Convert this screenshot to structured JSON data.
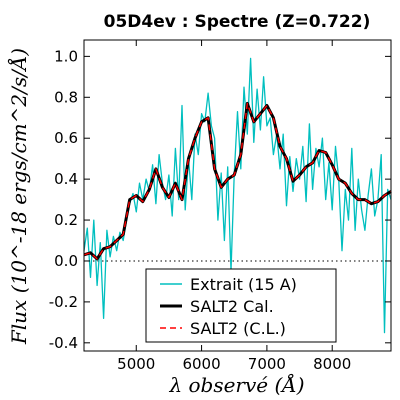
{
  "chart_data": {
    "type": "line",
    "title": "05D4ev : Spectre (Z=0.722)",
    "xlabel": "λ observé (Å)",
    "ylabel": "Flux (10^-18 ergs/cm^2/s/Å)",
    "xlim": [
      4200,
      8900
    ],
    "ylim": [
      -0.44,
      1.08
    ],
    "x_ticks": [
      5000,
      6000,
      7000,
      8000
    ],
    "x_tick_labels": [
      "5000",
      "6000",
      "7000",
      "8000"
    ],
    "y_ticks": [
      -0.4,
      -0.2,
      0.0,
      0.2,
      0.4,
      0.6,
      0.8,
      1.0
    ],
    "y_tick_labels": [
      "-0.4",
      "-0.2",
      "0.0",
      "0.2",
      "0.4",
      "0.6",
      "0.8",
      "1.0"
    ],
    "zero_line": true,
    "legend_position": "bottom-center",
    "series": [
      {
        "name": "Extrait (15 A)",
        "color": "#00bfbf",
        "style": "solid",
        "x": [
          4200,
          4250,
          4300,
          4350,
          4400,
          4450,
          4500,
          4550,
          4600,
          4650,
          4700,
          4750,
          4800,
          4850,
          4900,
          4950,
          5000,
          5050,
          5100,
          5150,
          5200,
          5250,
          5300,
          5350,
          5400,
          5450,
          5500,
          5550,
          5600,
          5650,
          5700,
          5750,
          5800,
          5850,
          5900,
          5950,
          6000,
          6050,
          6100,
          6150,
          6200,
          6250,
          6300,
          6350,
          6400,
          6450,
          6500,
          6550,
          6600,
          6650,
          6700,
          6750,
          6800,
          6850,
          6900,
          6950,
          7000,
          7050,
          7100,
          7150,
          7200,
          7250,
          7300,
          7350,
          7400,
          7450,
          7500,
          7550,
          7600,
          7650,
          7700,
          7750,
          7800,
          7850,
          7900,
          7950,
          8000,
          8050,
          8100,
          8150,
          8200,
          8250,
          8300,
          8350,
          8400,
          8450,
          8500,
          8550,
          8600,
          8650,
          8700,
          8750,
          8800,
          8850,
          8900
        ],
        "y": [
          0.05,
          0.16,
          -0.08,
          0.2,
          -0.12,
          0.09,
          -0.28,
          0.15,
          0.02,
          0.12,
          0.05,
          0.14,
          0.1,
          0.2,
          0.28,
          0.33,
          0.24,
          0.38,
          0.3,
          0.4,
          0.34,
          0.47,
          0.28,
          0.52,
          0.38,
          0.3,
          0.42,
          0.22,
          0.55,
          0.3,
          0.76,
          0.25,
          0.5,
          0.3,
          0.62,
          0.52,
          0.72,
          0.68,
          0.82,
          0.66,
          0.6,
          0.2,
          0.43,
          0.1,
          0.46,
          -0.05,
          0.42,
          0.73,
          0.45,
          0.85,
          0.62,
          0.99,
          0.58,
          0.84,
          0.64,
          0.9,
          0.66,
          0.7,
          0.52,
          0.62,
          0.45,
          0.62,
          0.27,
          0.51,
          0.34,
          0.5,
          0.4,
          0.56,
          0.29,
          0.67,
          0.35,
          0.55,
          0.46,
          0.6,
          0.3,
          0.48,
          0.25,
          0.56,
          0.4,
          0.05,
          0.35,
          0.2,
          0.55,
          0.15,
          0.4,
          0.25,
          0.15,
          0.32,
          0.45,
          0.22,
          0.3,
          0.52,
          -0.35,
          0.35,
          0.3
        ]
      },
      {
        "name": "SALT2 Cal.",
        "color": "#000000",
        "style": "solid",
        "x": [
          4200,
          4300,
          4400,
          4500,
          4600,
          4700,
          4800,
          4900,
          5000,
          5100,
          5200,
          5300,
          5400,
          5500,
          5600,
          5700,
          5800,
          5900,
          6000,
          6100,
          6200,
          6300,
          6400,
          6500,
          6600,
          6700,
          6800,
          6900,
          7000,
          7100,
          7200,
          7300,
          7400,
          7500,
          7600,
          7700,
          7800,
          7900,
          8000,
          8100,
          8200,
          8300,
          8400,
          8500,
          8600,
          8700,
          8800,
          8900
        ],
        "y": [
          0.03,
          0.04,
          0.01,
          0.06,
          0.07,
          0.1,
          0.13,
          0.3,
          0.32,
          0.29,
          0.35,
          0.45,
          0.36,
          0.31,
          0.38,
          0.3,
          0.5,
          0.6,
          0.68,
          0.7,
          0.45,
          0.36,
          0.4,
          0.42,
          0.52,
          0.77,
          0.68,
          0.72,
          0.76,
          0.7,
          0.56,
          0.5,
          0.39,
          0.42,
          0.46,
          0.48,
          0.54,
          0.53,
          0.47,
          0.4,
          0.38,
          0.33,
          0.3,
          0.3,
          0.28,
          0.29,
          0.32,
          0.34
        ]
      },
      {
        "name": "SALT2 (C.L.)",
        "color": "#ff0000",
        "style": "dashed",
        "x": [
          4200,
          4300,
          4400,
          4500,
          4600,
          4700,
          4800,
          4900,
          5000,
          5100,
          5200,
          5300,
          5400,
          5500,
          5600,
          5700,
          5800,
          5900,
          6000,
          6100,
          6200,
          6300,
          6400,
          6500,
          6600,
          6700,
          6800,
          6900,
          7000,
          7100,
          7200,
          7300,
          7400,
          7500,
          7600,
          7700,
          7800,
          7900,
          8000,
          8100,
          8200,
          8300,
          8400,
          8500,
          8600,
          8700,
          8800,
          8900
        ],
        "y": [
          0.03,
          0.04,
          0.01,
          0.06,
          0.07,
          0.1,
          0.13,
          0.3,
          0.32,
          0.29,
          0.35,
          0.45,
          0.36,
          0.31,
          0.38,
          0.3,
          0.5,
          0.6,
          0.68,
          0.7,
          0.45,
          0.36,
          0.4,
          0.42,
          0.52,
          0.77,
          0.68,
          0.72,
          0.76,
          0.7,
          0.56,
          0.5,
          0.39,
          0.42,
          0.46,
          0.48,
          0.54,
          0.53,
          0.47,
          0.4,
          0.38,
          0.33,
          0.3,
          0.3,
          0.28,
          0.29,
          0.32,
          0.34
        ]
      }
    ]
  }
}
